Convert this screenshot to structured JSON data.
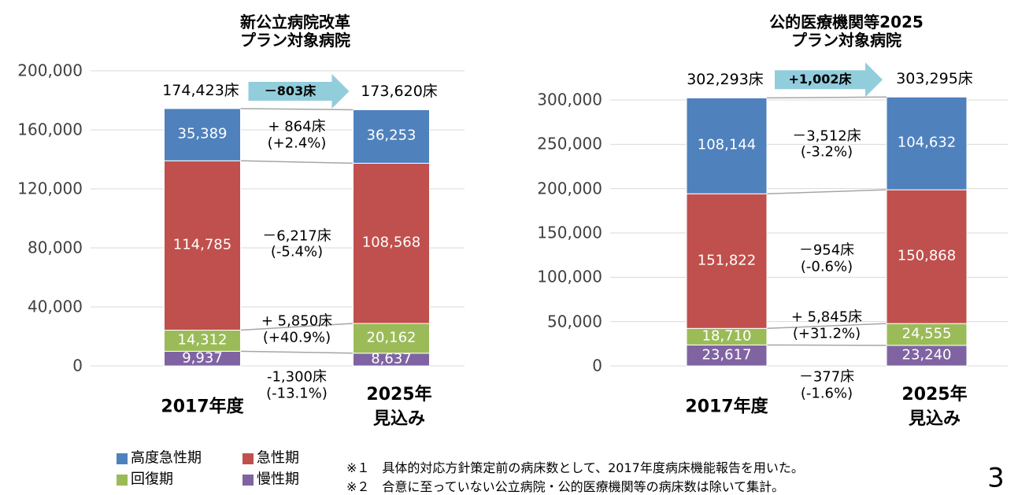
{
  "chart_data": [
    {
      "type": "stacked_bar",
      "title": "新公立病院改革\nプラン対象病院",
      "categories": [
        "2017年度",
        "2025年\n見込み"
      ],
      "ylim": [
        0,
        200000
      ],
      "yticks": [
        0,
        {
          "value": 40000,
          "label": "40,000"
        },
        {
          "value": 80000,
          "label": "80,000"
        },
        {
          "value": 120000,
          "label": "120,000"
        },
        {
          "value": 160000,
          "label": "160,000"
        },
        {
          "value": 200000,
          "label": "200,000"
        }
      ],
      "totals": [
        174423,
        173620
      ],
      "total_labels": [
        "174,423床",
        "173,620床"
      ],
      "total_change": "－803床",
      "series": [
        {
          "name": "慢性期",
          "color": "#8064a2",
          "values": [
            9937,
            8637
          ],
          "value_labels": [
            "9,937",
            "8,637"
          ],
          "change": "-1,300床\n(-13.1%)"
        },
        {
          "name": "回復期",
          "color": "#9bbb59",
          "values": [
            14312,
            20162
          ],
          "value_labels": [
            "14,312",
            "20,162"
          ],
          "change": "+ 5,850床\n(+40.9%)"
        },
        {
          "name": "急性期",
          "color": "#c0504d",
          "values": [
            114785,
            108568
          ],
          "value_labels": [
            "114,785",
            "108,568"
          ],
          "change": "－6,217床\n(-5.4%)"
        },
        {
          "name": "高度急性期",
          "color": "#4f81bd",
          "values": [
            35389,
            36253
          ],
          "value_labels": [
            "35,389",
            "36,253"
          ],
          "change": "+ 864床\n(+2.4%)"
        }
      ]
    },
    {
      "type": "stacked_bar",
      "title": "公的医療機関等2025\nプラン対象病院",
      "categories": [
        "2017年度",
        "2025年\n見込み"
      ],
      "ylim": [
        0,
        300000
      ],
      "yticks": [
        0,
        {
          "value": 50000,
          "label": "50,000"
        },
        {
          "value": 100000,
          "label": "100,000"
        },
        {
          "value": 150000,
          "label": "150,000"
        },
        {
          "value": 200000,
          "label": "200,000"
        },
        {
          "value": 250000,
          "label": "250,000"
        },
        {
          "value": 300000,
          "label": "300,000"
        }
      ],
      "totals": [
        302293,
        303295
      ],
      "total_labels": [
        "302,293床",
        "303,295床"
      ],
      "total_change": "+1,002床",
      "series": [
        {
          "name": "慢性期",
          "color": "#8064a2",
          "values": [
            23617,
            23240
          ],
          "value_labels": [
            "23,617",
            "23,240"
          ],
          "change": "－377床\n(-1.6%)"
        },
        {
          "name": "回復期",
          "color": "#9bbb59",
          "values": [
            18710,
            24555
          ],
          "value_labels": [
            "18,710",
            "24,555"
          ],
          "change": "+ 5,845床\n(+31.2%)"
        },
        {
          "name": "急性期",
          "color": "#c0504d",
          "values": [
            151822,
            150868
          ],
          "value_labels": [
            "151,822",
            "150,868"
          ],
          "change": "－954床\n(-0.6%)"
        },
        {
          "name": "高度急性期",
          "color": "#4f81bd",
          "values": [
            108144,
            104632
          ],
          "value_labels": [
            "108,144",
            "104,632"
          ],
          "change": "－3,512床\n(-3.2%)"
        }
      ]
    }
  ],
  "notes": [
    "※１　具体的対応方針策定前の病床数として、2017年度病床機能報告を用いた。",
    "※２　合意に至っていない公立病院・公的医療機関等の病床数は除いて集計。"
  ],
  "page_number": "3"
}
